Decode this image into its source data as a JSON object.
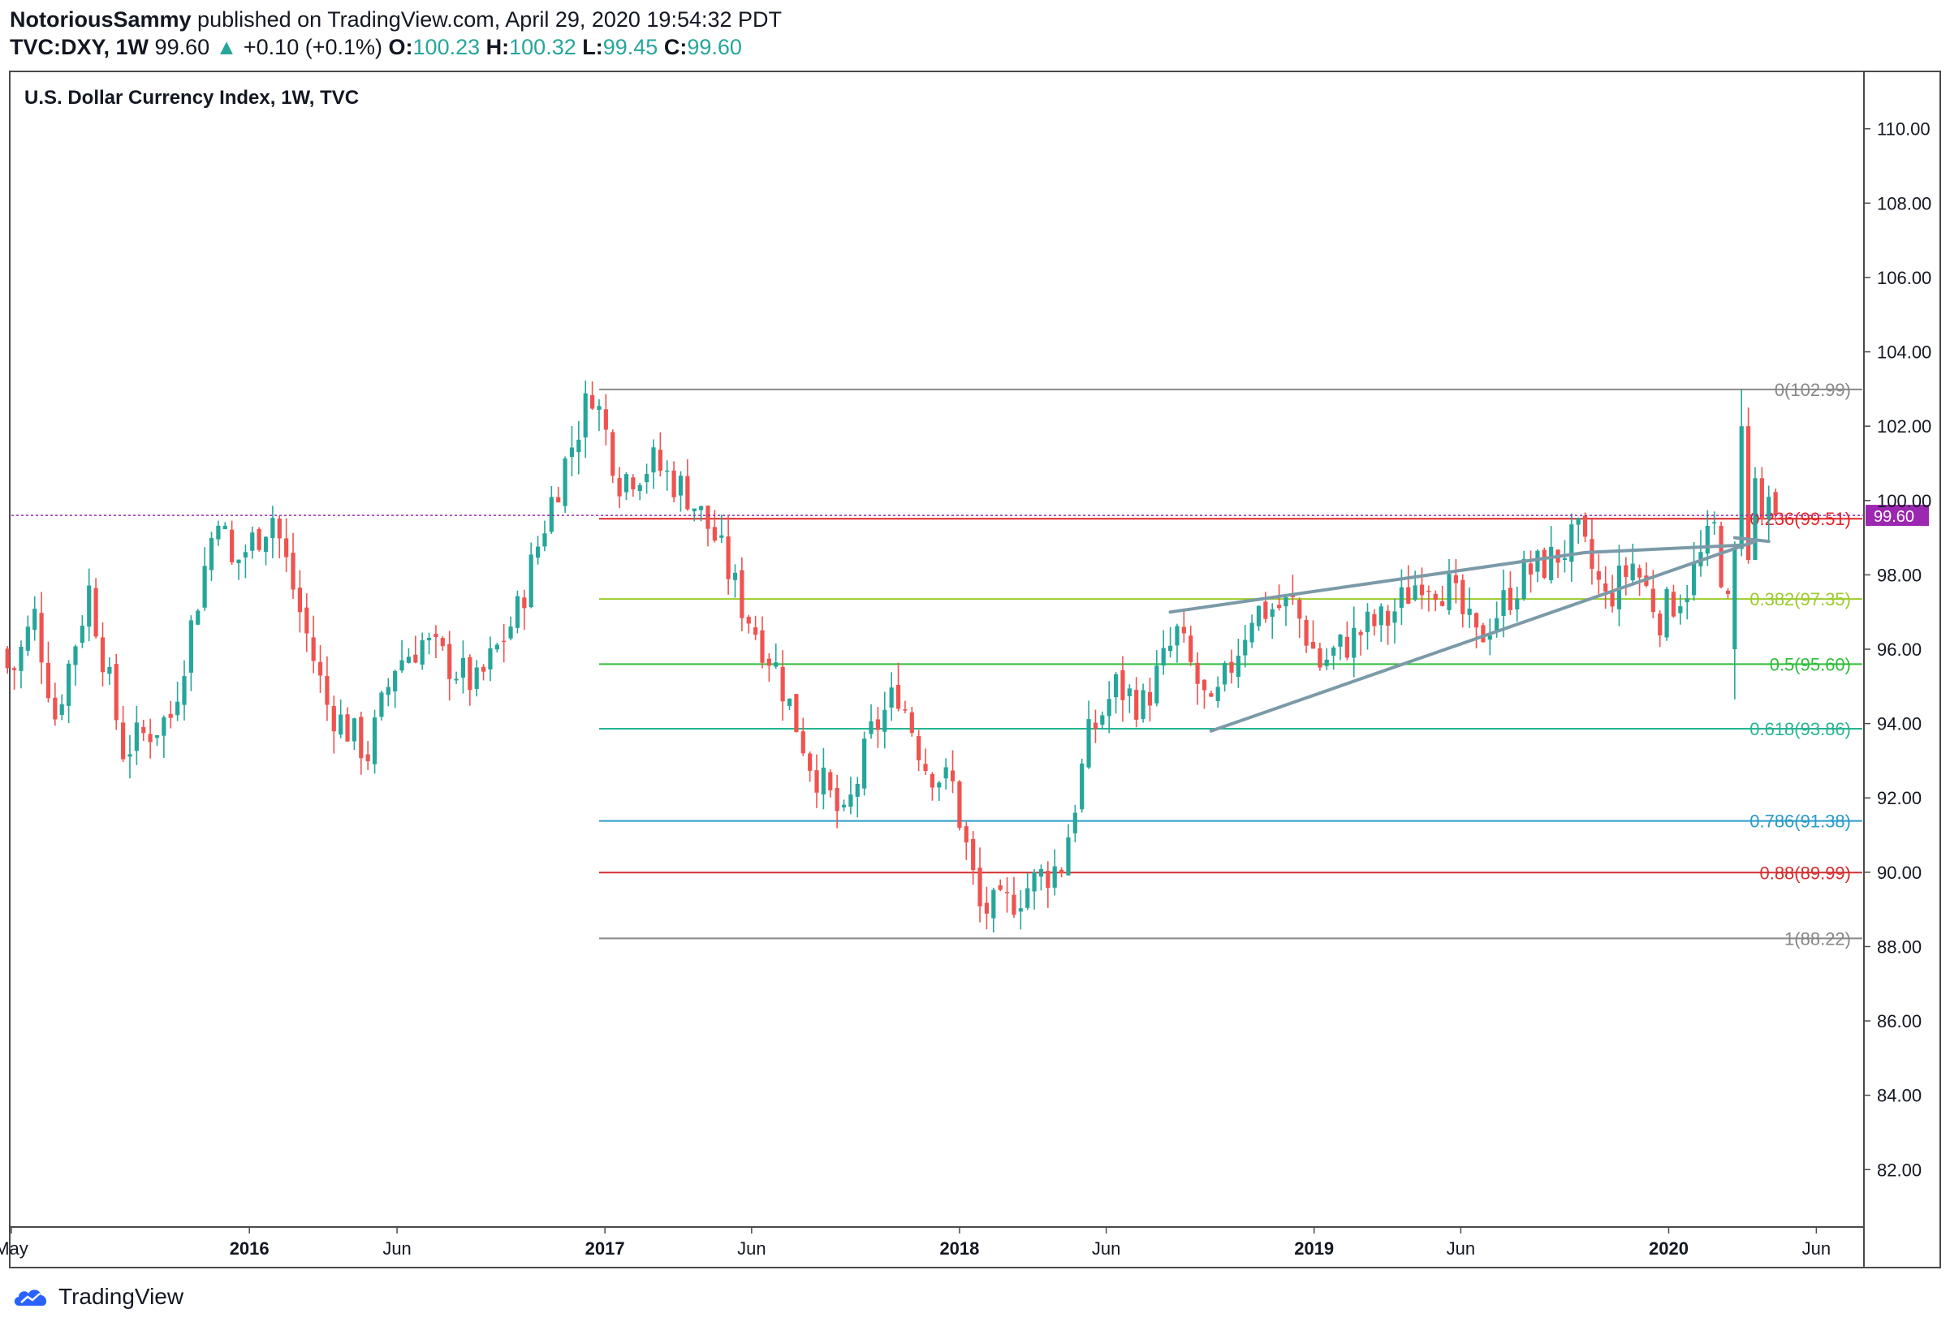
{
  "header": {
    "author": "NotoriousSammy",
    "published_text": " published on TradingView.com, April 29, 2020 19:54:32 PDT",
    "symbol": "TVC:DXY, 1W",
    "last": "99.60",
    "change": "+0.10 (+0.1%)",
    "o_label": "O:",
    "o_value": "100.23",
    "h_label": "H:",
    "h_value": "100.32",
    "l_label": "L:",
    "l_value": "99.45",
    "c_label": "C:",
    "c_value": "99.60"
  },
  "footer": {
    "brand": "TradingView"
  },
  "colors": {
    "up": "#26a69a",
    "down": "#ef5350",
    "price_line": "#9c27b0",
    "trendline": "#7b9aa8"
  },
  "chart_data": {
    "type": "candlestick",
    "title": "U.S. Dollar Currency Index, 1W, TVC",
    "timeframe": "1W",
    "y_range": [
      80.5,
      111.5
    ],
    "y_ticks": [
      "82.00",
      "84.00",
      "86.00",
      "88.00",
      "90.00",
      "92.00",
      "94.00",
      "96.00",
      "98.00",
      "100.00",
      "102.00",
      "104.00",
      "106.00",
      "108.00",
      "110.00"
    ],
    "x_range": [
      "2015-05-01",
      "2020-07-20"
    ],
    "x_ticks": [
      {
        "date": "2015-05-01",
        "label": "May",
        "bold": false
      },
      {
        "date": "2016-01-01",
        "label": "2016",
        "bold": true
      },
      {
        "date": "2016-06-01",
        "label": "Jun",
        "bold": false
      },
      {
        "date": "2017-01-01",
        "label": "2017",
        "bold": true
      },
      {
        "date": "2017-06-01",
        "label": "Jun",
        "bold": false
      },
      {
        "date": "2018-01-01",
        "label": "2018",
        "bold": true
      },
      {
        "date": "2018-06-01",
        "label": "Jun",
        "bold": false
      },
      {
        "date": "2019-01-01",
        "label": "2019",
        "bold": true
      },
      {
        "date": "2019-06-01",
        "label": "Jun",
        "bold": false
      },
      {
        "date": "2020-01-01",
        "label": "2020",
        "bold": true
      },
      {
        "date": "2020-06-01",
        "label": "Jun",
        "bold": false
      }
    ],
    "current_price": {
      "value": 99.6,
      "label": "99.60"
    },
    "fib_levels": [
      {
        "label": "0(102.99)",
        "value": 102.99,
        "color": "#888888"
      },
      {
        "label": "0.236(99.51)",
        "value": 99.51,
        "color": "#e0272a"
      },
      {
        "label": "0.382(97.35)",
        "value": 97.35,
        "color": "#9ccc2c"
      },
      {
        "label": "0.5(95.60)",
        "value": 95.6,
        "color": "#2fbe3a"
      },
      {
        "label": "0.618(93.86)",
        "value": 93.86,
        "color": "#26b592"
      },
      {
        "label": "0.786(91.38)",
        "value": 91.38,
        "color": "#2a9cc9"
      },
      {
        "label": "0.88(89.99)",
        "value": 89.99,
        "color": "#d32f2f"
      },
      {
        "label": "1(88.22)",
        "value": 88.22,
        "color": "#888888"
      }
    ],
    "fib_start": "2016-12-26",
    "trendlines": [
      {
        "x1": "2018-08-06",
        "y1": 97.0,
        "x2": "2019-10-07",
        "y2": 98.6
      },
      {
        "x1": "2019-10-07",
        "y1": 98.6,
        "x2": "2020-03-16",
        "y2": 98.8
      },
      {
        "x1": "2018-09-17",
        "y1": 93.8,
        "x2": "2020-03-30",
        "y2": 98.9
      },
      {
        "x1": "2020-03-09",
        "y1": 99.0,
        "x2": "2020-04-13",
        "y2": 98.9
      }
    ],
    "anchors": [
      {
        "date": "2015-05-04",
        "close": 95.5
      },
      {
        "date": "2015-05-25",
        "close": 96.9
      },
      {
        "date": "2015-06-15",
        "close": 94.2
      },
      {
        "date": "2015-07-20",
        "close": 97.6
      },
      {
        "date": "2015-08-24",
        "close": 93.3
      },
      {
        "date": "2015-10-12",
        "close": 94.2
      },
      {
        "date": "2015-11-30",
        "close": 99.8
      },
      {
        "date": "2015-12-14",
        "close": 98.2
      },
      {
        "date": "2016-01-25",
        "close": 99.6
      },
      {
        "date": "2016-02-22",
        "close": 97.0
      },
      {
        "date": "2016-03-21",
        "close": 94.5
      },
      {
        "date": "2016-05-02",
        "close": 93.2
      },
      {
        "date": "2016-05-30",
        "close": 95.6
      },
      {
        "date": "2016-06-27",
        "close": 96.2
      },
      {
        "date": "2016-07-25",
        "close": 95.6
      },
      {
        "date": "2016-08-22",
        "close": 95.0
      },
      {
        "date": "2016-10-03",
        "close": 97.0
      },
      {
        "date": "2016-11-07",
        "close": 100.0
      },
      {
        "date": "2016-12-19",
        "close": 103.0
      },
      {
        "date": "2017-01-16",
        "close": 100.6
      },
      {
        "date": "2017-02-20",
        "close": 101.0
      },
      {
        "date": "2017-03-27",
        "close": 100.2
      },
      {
        "date": "2017-04-24",
        "close": 99.0
      },
      {
        "date": "2017-05-22",
        "close": 97.2
      },
      {
        "date": "2017-06-26",
        "close": 95.5
      },
      {
        "date": "2017-07-31",
        "close": 93.0
      },
      {
        "date": "2017-09-04",
        "close": 91.3
      },
      {
        "date": "2017-10-02",
        "close": 93.7
      },
      {
        "date": "2017-10-30",
        "close": 94.9
      },
      {
        "date": "2017-11-27",
        "close": 92.9
      },
      {
        "date": "2017-12-25",
        "close": 92.3
      },
      {
        "date": "2018-01-22",
        "close": 89.0
      },
      {
        "date": "2018-02-12",
        "close": 89.0
      },
      {
        "date": "2018-03-26",
        "close": 89.9
      },
      {
        "date": "2018-04-16",
        "close": 90.2
      },
      {
        "date": "2018-05-14",
        "close": 93.6
      },
      {
        "date": "2018-06-11",
        "close": 95.0
      },
      {
        "date": "2018-07-09",
        "close": 94.5
      },
      {
        "date": "2018-08-13",
        "close": 96.4
      },
      {
        "date": "2018-09-17",
        "close": 94.2
      },
      {
        "date": "2018-10-29",
        "close": 97.0
      },
      {
        "date": "2018-12-10",
        "close": 97.2
      },
      {
        "date": "2019-01-07",
        "close": 95.6
      },
      {
        "date": "2019-02-25",
        "close": 96.6
      },
      {
        "date": "2019-03-18",
        "close": 96.8
      },
      {
        "date": "2019-04-22",
        "close": 98.0
      },
      {
        "date": "2019-05-20",
        "close": 97.6
      },
      {
        "date": "2019-06-17",
        "close": 96.2
      },
      {
        "date": "2019-07-08",
        "close": 97.0
      },
      {
        "date": "2019-08-05",
        "close": 98.0
      },
      {
        "date": "2019-09-02",
        "close": 98.4
      },
      {
        "date": "2019-09-30",
        "close": 99.0
      },
      {
        "date": "2019-10-28",
        "close": 97.3
      },
      {
        "date": "2019-11-25",
        "close": 98.3
      },
      {
        "date": "2019-12-23",
        "close": 96.9
      },
      {
        "date": "2020-01-20",
        "close": 97.7
      },
      {
        "date": "2020-02-17",
        "close": 99.2
      },
      {
        "date": "2020-03-09",
        "close": 96.0
      },
      {
        "date": "2020-03-16",
        "close": 102.0
      },
      {
        "date": "2020-03-30",
        "close": 100.0
      },
      {
        "date": "2020-04-20",
        "close": 99.6
      }
    ]
  }
}
